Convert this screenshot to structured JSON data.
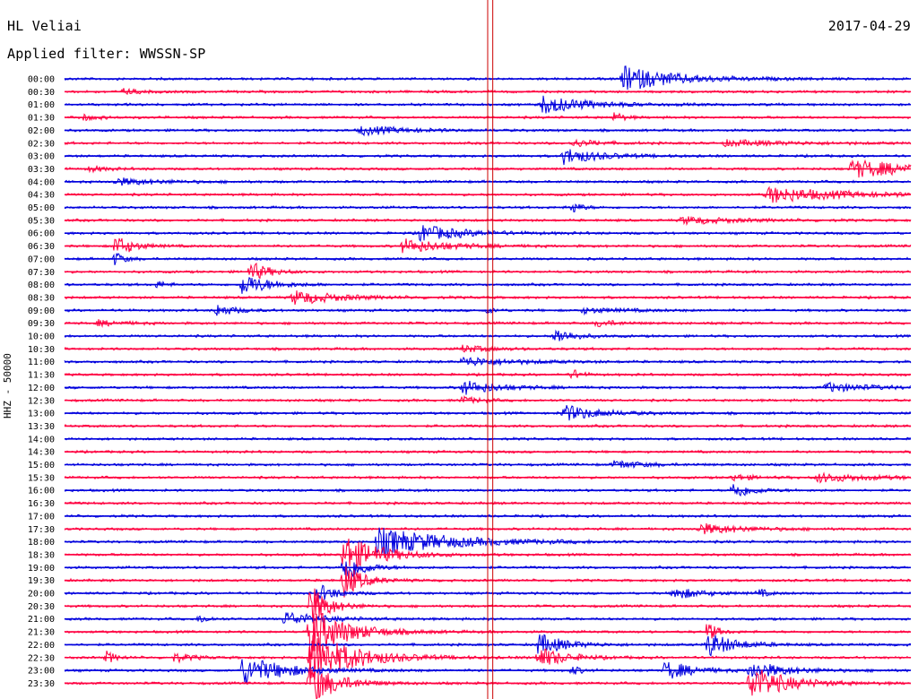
{
  "header": {
    "station": "HL Veliai",
    "date": "2017-04-29",
    "filter_label": "Applied filter: WWSSN-SP"
  },
  "chart_data": {
    "type": "line",
    "title": "HL Veliai",
    "date": "2017-04-29",
    "ylabel": "HHZ - 50000",
    "row_labels": [
      "00:00",
      "00:30",
      "01:00",
      "01:30",
      "02:00",
      "02:30",
      "03:00",
      "03:30",
      "04:00",
      "04:30",
      "05:00",
      "05:30",
      "06:00",
      "06:30",
      "07:00",
      "07:30",
      "08:00",
      "08:30",
      "09:00",
      "09:30",
      "10:00",
      "10:30",
      "11:00",
      "11:30",
      "12:00",
      "12:30",
      "13:00",
      "13:30",
      "14:00",
      "14:30",
      "15:00",
      "15:30",
      "16:00",
      "16:30",
      "17:00",
      "17:30",
      "18:00",
      "18:30",
      "19:00",
      "19:30",
      "20:00",
      "20:30",
      "21:00",
      "21:30",
      "22:00",
      "22:30",
      "23:00",
      "23:30"
    ],
    "trace_colors": [
      "#0000dd",
      "#ff0040"
    ],
    "marker_color": "#cc0000",
    "noise_level": 1.2,
    "events": [
      {
        "row": 0,
        "x": 0.66,
        "amp": 14,
        "dur": 0.06
      },
      {
        "row": 1,
        "x": 0.07,
        "amp": 3,
        "dur": 0.02
      },
      {
        "row": 2,
        "x": 0.565,
        "amp": 10,
        "dur": 0.05
      },
      {
        "row": 3,
        "x": 0.02,
        "amp": 3,
        "dur": 0.02
      },
      {
        "row": 3,
        "x": 0.65,
        "amp": 6,
        "dur": 0.01
      },
      {
        "row": 4,
        "x": 0.35,
        "amp": 5,
        "dur": 0.05
      },
      {
        "row": 5,
        "x": 0.6,
        "amp": 4,
        "dur": 0.03
      },
      {
        "row": 5,
        "x": 0.78,
        "amp": 3,
        "dur": 0.08
      },
      {
        "row": 6,
        "x": 0.59,
        "amp": 9,
        "dur": 0.04
      },
      {
        "row": 7,
        "x": 0.03,
        "amp": 3,
        "dur": 0.02
      },
      {
        "row": 7,
        "x": 0.93,
        "amp": 10,
        "dur": 0.08
      },
      {
        "row": 8,
        "x": 0.06,
        "amp": 4,
        "dur": 0.05
      },
      {
        "row": 9,
        "x": 0.83,
        "amp": 9,
        "dur": 0.08
      },
      {
        "row": 10,
        "x": 0.6,
        "amp": 7,
        "dur": 0.01
      },
      {
        "row": 11,
        "x": 0.73,
        "amp": 4,
        "dur": 0.06
      },
      {
        "row": 12,
        "x": 0.42,
        "amp": 9,
        "dur": 0.05
      },
      {
        "row": 13,
        "x": 0.06,
        "amp": 12,
        "dur": 0.02
      },
      {
        "row": 13,
        "x": 0.4,
        "amp": 8,
        "dur": 0.05
      },
      {
        "row": 14,
        "x": 0.06,
        "amp": 8,
        "dur": 0.01
      },
      {
        "row": 15,
        "x": 0.22,
        "amp": 11,
        "dur": 0.02
      },
      {
        "row": 16,
        "x": 0.21,
        "amp": 12,
        "dur": 0.03
      },
      {
        "row": 16,
        "x": 0.11,
        "amp": 4,
        "dur": 0.01
      },
      {
        "row": 17,
        "x": 0.27,
        "amp": 8,
        "dur": 0.05
      },
      {
        "row": 18,
        "x": 0.18,
        "amp": 7,
        "dur": 0.02
      },
      {
        "row": 18,
        "x": 0.5,
        "amp": 3,
        "dur": 0.01
      },
      {
        "row": 18,
        "x": 0.61,
        "amp": 3,
        "dur": 0.05
      },
      {
        "row": 19,
        "x": 0.04,
        "amp": 3,
        "dur": 0.03
      },
      {
        "row": 19,
        "x": 0.63,
        "amp": 4,
        "dur": 0.02
      },
      {
        "row": 20,
        "x": 0.58,
        "amp": 9,
        "dur": 0.02
      },
      {
        "row": 21,
        "x": 0.47,
        "amp": 4,
        "dur": 0.03
      },
      {
        "row": 22,
        "x": 0.47,
        "amp": 5,
        "dur": 0.06
      },
      {
        "row": 23,
        "x": 0.6,
        "amp": 6,
        "dur": 0.01
      },
      {
        "row": 24,
        "x": 0.47,
        "amp": 8,
        "dur": 0.04
      },
      {
        "row": 24,
        "x": 0.9,
        "amp": 5,
        "dur": 0.05
      },
      {
        "row": 25,
        "x": 0.47,
        "amp": 4,
        "dur": 0.02
      },
      {
        "row": 26,
        "x": 0.59,
        "amp": 9,
        "dur": 0.04
      },
      {
        "row": 30,
        "x": 0.65,
        "amp": 5,
        "dur": 0.03
      },
      {
        "row": 31,
        "x": 0.79,
        "amp": 4,
        "dur": 0.02
      },
      {
        "row": 31,
        "x": 0.89,
        "amp": 5,
        "dur": 0.06
      },
      {
        "row": 32,
        "x": 0.79,
        "amp": 10,
        "dur": 0.02
      },
      {
        "row": 35,
        "x": 0.75,
        "amp": 6,
        "dur": 0.05
      },
      {
        "row": 36,
        "x": 0.37,
        "amp": 16,
        "dur": 0.08
      },
      {
        "row": 37,
        "x": 0.33,
        "amp": 22,
        "dur": 0.04
      },
      {
        "row": 38,
        "x": 0.33,
        "amp": 18,
        "dur": 0.02
      },
      {
        "row": 39,
        "x": 0.33,
        "amp": 20,
        "dur": 0.02
      },
      {
        "row": 40,
        "x": 0.3,
        "amp": 10,
        "dur": 0.02
      },
      {
        "row": 40,
        "x": 0.72,
        "amp": 7,
        "dur": 0.03
      },
      {
        "row": 40,
        "x": 0.82,
        "amp": 5,
        "dur": 0.01
      },
      {
        "row": 41,
        "x": 0.29,
        "amp": 25,
        "dur": 0.02
      },
      {
        "row": 42,
        "x": 0.26,
        "amp": 8,
        "dur": 0.04
      },
      {
        "row": 42,
        "x": 0.16,
        "amp": 5,
        "dur": 0.01
      },
      {
        "row": 43,
        "x": 0.29,
        "amp": 30,
        "dur": 0.04
      },
      {
        "row": 43,
        "x": 0.76,
        "amp": 12,
        "dur": 0.01
      },
      {
        "row": 44,
        "x": 0.56,
        "amp": 12,
        "dur": 0.03
      },
      {
        "row": 44,
        "x": 0.76,
        "amp": 14,
        "dur": 0.03
      },
      {
        "row": 45,
        "x": 0.05,
        "amp": 7,
        "dur": 0.01
      },
      {
        "row": 45,
        "x": 0.13,
        "amp": 5,
        "dur": 0.02
      },
      {
        "row": 45,
        "x": 0.29,
        "amp": 30,
        "dur": 0.05
      },
      {
        "row": 45,
        "x": 0.56,
        "amp": 12,
        "dur": 0.03
      },
      {
        "row": 46,
        "x": 0.21,
        "amp": 16,
        "dur": 0.05
      },
      {
        "row": 46,
        "x": 0.6,
        "amp": 5,
        "dur": 0.01
      },
      {
        "row": 46,
        "x": 0.71,
        "amp": 11,
        "dur": 0.03
      },
      {
        "row": 46,
        "x": 0.81,
        "amp": 10,
        "dur": 0.04
      },
      {
        "row": 47,
        "x": 0.29,
        "amp": 24,
        "dur": 0.03
      },
      {
        "row": 47,
        "x": 0.81,
        "amp": 20,
        "dur": 0.04
      }
    ],
    "markers": [
      0.5,
      0.506
    ]
  }
}
